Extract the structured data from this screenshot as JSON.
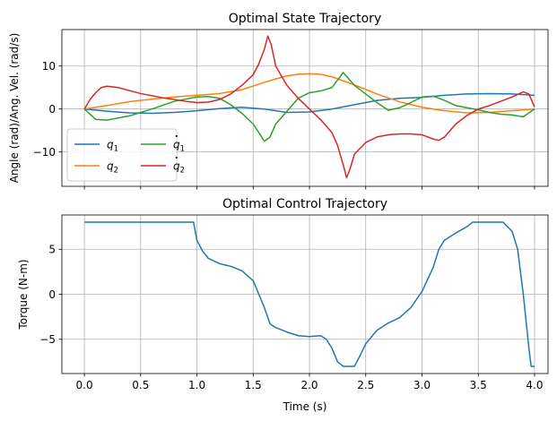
{
  "chart_data": [
    {
      "type": "line",
      "title": "Optimal State Trajectory",
      "xlabel": "",
      "ylabel": "Angle (rad)/Ang. Vel. (rad/s)",
      "xlim": [
        -0.2,
        4.12
      ],
      "ylim": [
        -18,
        18.5
      ],
      "xticks": [
        0.0,
        0.5,
        1.0,
        1.5,
        2.0,
        2.5,
        3.0,
        3.5,
        4.0
      ],
      "yticks": [
        -10,
        0,
        10
      ],
      "ytick_labels": [
        "−10",
        "0",
        "10"
      ],
      "grid": true,
      "legend": "lower-left",
      "series": [
        {
          "name": "q1",
          "label_main": "q",
          "label_sub": "1",
          "dot": false,
          "color": "#1f77b4",
          "x": [
            0,
            0.2,
            0.4,
            0.6,
            0.8,
            1.0,
            1.2,
            1.4,
            1.6,
            1.8,
            2.0,
            2.2,
            2.4,
            2.6,
            2.8,
            3.0,
            3.2,
            3.4,
            3.6,
            3.8,
            4.0
          ],
          "y": [
            0,
            -0.5,
            -0.9,
            -1.0,
            -0.8,
            -0.4,
            0.1,
            0.4,
            0.0,
            -0.8,
            -0.7,
            0.0,
            1.0,
            2.0,
            2.5,
            2.7,
            3.2,
            3.5,
            3.6,
            3.5,
            3.2
          ]
        },
        {
          "name": "q2",
          "label_main": "q",
          "label_sub": "2",
          "dot": false,
          "color": "#ff7f0e",
          "x": [
            0,
            0.2,
            0.4,
            0.6,
            0.8,
            1.0,
            1.2,
            1.4,
            1.6,
            1.7,
            1.8,
            1.9,
            2.0,
            2.1,
            2.2,
            2.4,
            2.6,
            2.8,
            3.0,
            3.2,
            3.4,
            3.6,
            3.8,
            4.0
          ],
          "y": [
            0,
            0.8,
            1.7,
            2.3,
            2.8,
            3.2,
            3.6,
            4.5,
            6.2,
            7.0,
            7.7,
            8.1,
            8.2,
            8.1,
            7.5,
            5.6,
            3.5,
            1.7,
            0.4,
            -0.4,
            -0.9,
            -0.8,
            -0.4,
            0.0
          ]
        },
        {
          "name": "q1_dot",
          "label_main": "q",
          "label_sub": "1",
          "dot": true,
          "color": "#2ca02c",
          "x": [
            0,
            0.1,
            0.2,
            0.4,
            0.6,
            0.8,
            1.0,
            1.1,
            1.2,
            1.3,
            1.4,
            1.5,
            1.55,
            1.6,
            1.65,
            1.7,
            1.8,
            1.9,
            2.0,
            2.1,
            2.2,
            2.3,
            2.35,
            2.4,
            2.5,
            2.6,
            2.7,
            2.8,
            2.9,
            3.0,
            3.1,
            3.2,
            3.3,
            3.4,
            3.5,
            3.6,
            3.7,
            3.8,
            3.9,
            4.0
          ],
          "y": [
            0,
            -2.4,
            -2.6,
            -1.6,
            0.0,
            1.8,
            2.8,
            2.9,
            2.5,
            1.0,
            -1.0,
            -3.5,
            -5.5,
            -7.5,
            -6.5,
            -3.5,
            -0.5,
            2.5,
            3.8,
            4.2,
            5.0,
            8.5,
            7.0,
            5.5,
            3.5,
            1.5,
            -0.3,
            0.3,
            1.5,
            2.8,
            3.0,
            2.0,
            0.8,
            0.3,
            -0.2,
            -0.8,
            -1.2,
            -1.4,
            -1.8,
            0.0
          ]
        },
        {
          "name": "q2_dot",
          "label_main": "q",
          "label_sub": "2",
          "dot": true,
          "color": "#d62728",
          "x": [
            0,
            0.05,
            0.1,
            0.15,
            0.2,
            0.3,
            0.5,
            0.7,
            0.9,
            1.0,
            1.1,
            1.2,
            1.3,
            1.4,
            1.5,
            1.55,
            1.6,
            1.63,
            1.66,
            1.7,
            1.8,
            1.9,
            2.0,
            2.1,
            2.2,
            2.25,
            2.3,
            2.33,
            2.36,
            2.4,
            2.5,
            2.6,
            2.7,
            2.8,
            2.9,
            3.0,
            3.1,
            3.15,
            3.2,
            3.3,
            3.4,
            3.5,
            3.6,
            3.7,
            3.8,
            3.9,
            3.95,
            4.0
          ],
          "y": [
            0,
            2.2,
            3.8,
            5.0,
            5.3,
            5.0,
            3.6,
            2.6,
            1.8,
            1.5,
            1.6,
            2.2,
            3.5,
            5.5,
            8.0,
            10.5,
            14.0,
            17.0,
            15.0,
            10.0,
            5.5,
            2.5,
            0.0,
            -2.5,
            -5.5,
            -8.5,
            -13.0,
            -16.0,
            -14.0,
            -10.5,
            -7.8,
            -6.5,
            -6.0,
            -5.8,
            -5.8,
            -6.0,
            -7.0,
            -7.3,
            -6.5,
            -3.5,
            -1.5,
            0.0,
            0.8,
            1.8,
            2.8,
            4.0,
            3.5,
            0.5
          ]
        }
      ]
    },
    {
      "type": "line",
      "title": "Optimal Control Trajectory",
      "xlabel": "Time (s)",
      "ylabel": "Torque (N-m)",
      "xlim": [
        -0.2,
        4.12
      ],
      "ylim": [
        -8.8,
        8.8
      ],
      "xticks": [
        0.0,
        0.5,
        1.0,
        1.5,
        2.0,
        2.5,
        3.0,
        3.5,
        4.0
      ],
      "xtick_labels": [
        "0.0",
        "0.5",
        "1.0",
        "1.5",
        "2.0",
        "2.5",
        "3.0",
        "3.5",
        "4.0"
      ],
      "yticks": [
        -5,
        0,
        5
      ],
      "ytick_labels": [
        "−5",
        "0",
        "5"
      ],
      "grid": true,
      "series": [
        {
          "name": "u",
          "color": "#1f77b4",
          "x": [
            0,
            0.5,
            0.97,
            1.0,
            1.05,
            1.1,
            1.2,
            1.3,
            1.4,
            1.5,
            1.55,
            1.6,
            1.65,
            1.7,
            1.8,
            1.9,
            2.0,
            2.1,
            2.15,
            2.2,
            2.25,
            2.3,
            2.35,
            2.4,
            2.45,
            2.5,
            2.6,
            2.7,
            2.8,
            2.9,
            3.0,
            3.1,
            3.15,
            3.2,
            3.3,
            3.4,
            3.45,
            3.5,
            3.6,
            3.7,
            3.72,
            3.8,
            3.85,
            3.9,
            3.95,
            3.97,
            4.0
          ],
          "y": [
            8.0,
            8.0,
            8.0,
            6.0,
            4.8,
            4.0,
            3.4,
            3.1,
            2.6,
            1.5,
            0.0,
            -1.5,
            -3.3,
            -3.7,
            -4.2,
            -4.6,
            -4.7,
            -4.6,
            -5.0,
            -6.0,
            -7.5,
            -8.0,
            -8.0,
            -8.0,
            -6.8,
            -5.5,
            -4.0,
            -3.2,
            -2.6,
            -1.5,
            0.3,
            3.0,
            5.0,
            6.0,
            6.8,
            7.5,
            8.0,
            8.0,
            8.0,
            8.0,
            8.0,
            7.0,
            5.0,
            0.0,
            -6.0,
            -8.0,
            -8.0
          ]
        }
      ]
    }
  ]
}
